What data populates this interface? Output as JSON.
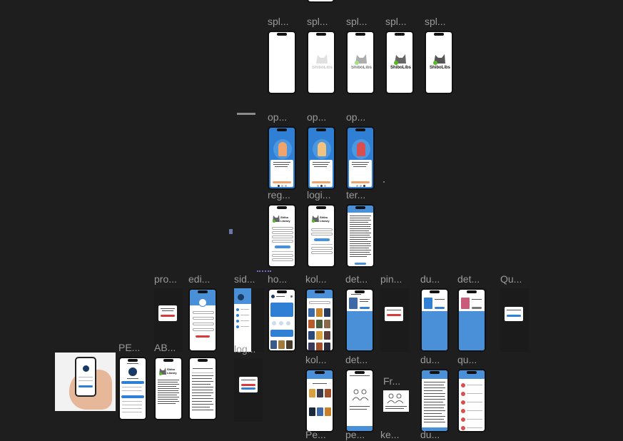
{
  "canvas": {
    "background": "#1e1e1e"
  },
  "colors": {
    "accent_blue": "#2f7fd4",
    "header_blue": "#4a90d9",
    "orange": "#f0a36a",
    "red": "#d93a3a",
    "label_gray": "#9a9a9a"
  },
  "frames": {
    "splash1": {
      "label": "spl..."
    },
    "splash2": {
      "label": "spl...",
      "logo": "ShiboLibs"
    },
    "splash3": {
      "label": "spl...",
      "logo": "ShiboLibs"
    },
    "splash4": {
      "label": "spl...",
      "logo": "ShiboLibs"
    },
    "splash5": {
      "label": "spl...",
      "logo": "ShiboLibs"
    },
    "onboarding1": {
      "label": "op..."
    },
    "onboarding2": {
      "label": "op..."
    },
    "onboarding3": {
      "label": "op..."
    },
    "register": {
      "label": "reg...",
      "logo": "Shibo Library"
    },
    "login": {
      "label": "logi...",
      "logo": "Shibo Library"
    },
    "terms": {
      "label": "ter..."
    },
    "profile": {
      "label": "pro..."
    },
    "edit": {
      "label": "edi..."
    },
    "sidebar": {
      "label": "sid..."
    },
    "home": {
      "label": "ho..."
    },
    "collection1": {
      "label": "kol..."
    },
    "detail1": {
      "label": "det..."
    },
    "borrow": {
      "label": "pin..."
    },
    "du1": {
      "label": "du..."
    },
    "detail2": {
      "label": "det..."
    },
    "question1": {
      "label": "Qu..."
    },
    "pe1": {
      "label": "PE..."
    },
    "about": {
      "label": "AB...",
      "logo": "Shibo Library"
    },
    "logout": {
      "label": "log..."
    },
    "collection2": {
      "label": "kol..."
    },
    "detail3": {
      "label": "det..."
    },
    "frame": {
      "label": "Fr..."
    },
    "du2": {
      "label": "du..."
    },
    "question2": {
      "label": "qu..."
    },
    "pe2": {
      "label": "Pe..."
    },
    "pe3": {
      "label": "pe..."
    },
    "ke": {
      "label": "ke..."
    },
    "du3": {
      "label": "du..."
    }
  }
}
